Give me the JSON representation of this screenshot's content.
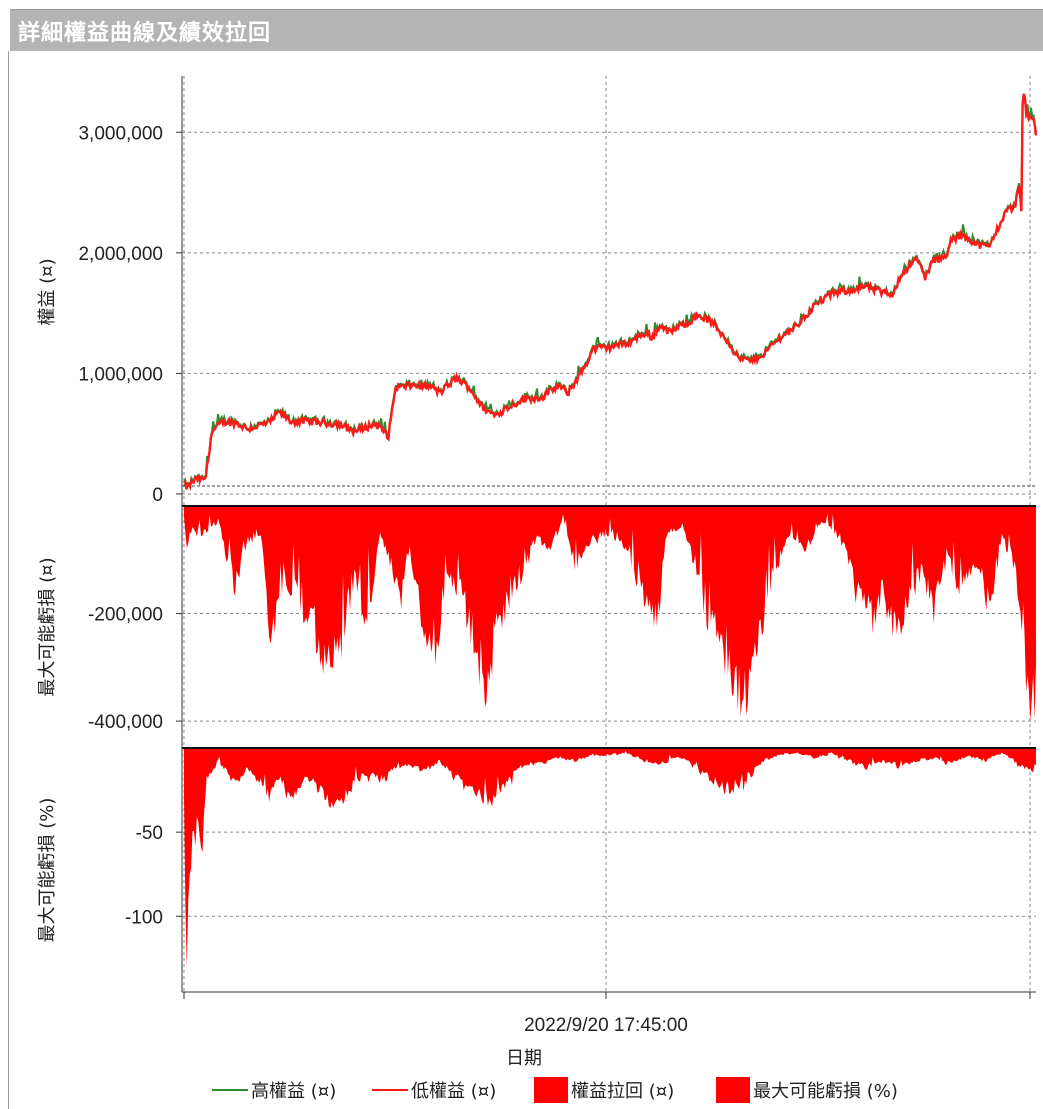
{
  "window": {
    "title": "詳細權益曲線及績效拉回"
  },
  "chart_data": {
    "type": "area",
    "x_tick_labels": [
      "2022/9/20 17:45:00"
    ],
    "xlabel": "日期",
    "panels": [
      {
        "ylabel": "權益 (¤)",
        "y_ticks": [
          0,
          1000000,
          2000000,
          3000000
        ],
        "y_tick_labels": [
          "0",
          "1,000,000",
          "2,000,000",
          "3,000,000"
        ],
        "ylim": [
          -100000,
          3450000
        ]
      },
      {
        "ylabel": "最大可能虧損 (¤)",
        "y_ticks": [
          -200000,
          -400000
        ],
        "y_tick_labels": [
          "-200,000",
          "-400,000"
        ],
        "ylim": [
          -450000,
          0
        ]
      },
      {
        "ylabel": "最大可能虧損 (%)",
        "y_ticks": [
          -50,
          -100
        ],
        "y_tick_labels": [
          "-50",
          "-100"
        ],
        "ylim": [
          -145,
          0
        ]
      }
    ],
    "series": [
      {
        "name": "高權益 (¤)",
        "color": "#2e8b2e",
        "style": "line"
      },
      {
        "name": "低權益 (¤)",
        "color": "#ff1a1a",
        "style": "line"
      },
      {
        "name": "權益拉回 (¤)",
        "color": "#ff0000",
        "style": "area"
      },
      {
        "name": "最大可能虧損 (%)",
        "color": "#ff0000",
        "style": "area"
      }
    ],
    "equity_keypoints": [
      [
        0.0,
        80000
      ],
      [
        0.004,
        50000
      ],
      [
        0.01,
        100000
      ],
      [
        0.016,
        130000
      ],
      [
        0.022,
        110000
      ],
      [
        0.026,
        150000
      ],
      [
        0.032,
        500000
      ],
      [
        0.045,
        600000
      ],
      [
        0.06,
        590000
      ],
      [
        0.075,
        540000
      ],
      [
        0.1,
        590000
      ],
      [
        0.112,
        680000
      ],
      [
        0.125,
        600000
      ],
      [
        0.15,
        600000
      ],
      [
        0.18,
        580000
      ],
      [
        0.2,
        520000
      ],
      [
        0.225,
        580000
      ],
      [
        0.24,
        480000
      ],
      [
        0.248,
        880000
      ],
      [
        0.27,
        900000
      ],
      [
        0.29,
        890000
      ],
      [
        0.3,
        840000
      ],
      [
        0.32,
        960000
      ],
      [
        0.335,
        880000
      ],
      [
        0.35,
        720000
      ],
      [
        0.365,
        650000
      ],
      [
        0.38,
        720000
      ],
      [
        0.4,
        790000
      ],
      [
        0.42,
        800000
      ],
      [
        0.44,
        900000
      ],
      [
        0.45,
        830000
      ],
      [
        0.47,
        1050000
      ],
      [
        0.48,
        1200000
      ],
      [
        0.5,
        1220000
      ],
      [
        0.52,
        1250000
      ],
      [
        0.54,
        1330000
      ],
      [
        0.55,
        1300000
      ],
      [
        0.56,
        1400000
      ],
      [
        0.57,
        1340000
      ],
      [
        0.59,
        1420000
      ],
      [
        0.605,
        1480000
      ],
      [
        0.62,
        1420000
      ],
      [
        0.64,
        1250000
      ],
      [
        0.65,
        1130000
      ],
      [
        0.665,
        1100000
      ],
      [
        0.68,
        1160000
      ],
      [
        0.7,
        1300000
      ],
      [
        0.72,
        1400000
      ],
      [
        0.74,
        1560000
      ],
      [
        0.76,
        1660000
      ],
      [
        0.78,
        1690000
      ],
      [
        0.8,
        1720000
      ],
      [
        0.815,
        1680000
      ],
      [
        0.83,
        1650000
      ],
      [
        0.845,
        1850000
      ],
      [
        0.86,
        1950000
      ],
      [
        0.87,
        1800000
      ],
      [
        0.88,
        1940000
      ],
      [
        0.895,
        1960000
      ],
      [
        0.9,
        2100000
      ],
      [
        0.915,
        2150000
      ],
      [
        0.93,
        2070000
      ],
      [
        0.945,
        2050000
      ],
      [
        0.955,
        2200000
      ],
      [
        0.965,
        2350000
      ],
      [
        0.975,
        2380000
      ],
      [
        0.98,
        2550000
      ],
      [
        0.983,
        2350000
      ],
      [
        0.984,
        3200000
      ],
      [
        0.986,
        3360000
      ],
      [
        0.989,
        3120000
      ],
      [
        0.993,
        3150000
      ],
      [
        0.998,
        3080000
      ],
      [
        1.0,
        2980000
      ]
    ],
    "drawdown_keypoints": [
      [
        0.0,
        -20000
      ],
      [
        0.004,
        -90000
      ],
      [
        0.009,
        -40000
      ],
      [
        0.02,
        -60000
      ],
      [
        0.04,
        -30000
      ],
      [
        0.06,
        -170000
      ],
      [
        0.07,
        -80000
      ],
      [
        0.09,
        -50000
      ],
      [
        0.1,
        -260000
      ],
      [
        0.12,
        -150000
      ],
      [
        0.14,
        -200000
      ],
      [
        0.16,
        -280000
      ],
      [
        0.175,
        -320000
      ],
      [
        0.185,
        -260000
      ],
      [
        0.2,
        -140000
      ],
      [
        0.215,
        -230000
      ],
      [
        0.23,
        -60000
      ],
      [
        0.255,
        -180000
      ],
      [
        0.265,
        -80000
      ],
      [
        0.28,
        -220000
      ],
      [
        0.295,
        -280000
      ],
      [
        0.31,
        -120000
      ],
      [
        0.33,
        -200000
      ],
      [
        0.345,
        -300000
      ],
      [
        0.355,
        -370000
      ],
      [
        0.365,
        -260000
      ],
      [
        0.38,
        -180000
      ],
      [
        0.4,
        -120000
      ],
      [
        0.415,
        -60000
      ],
      [
        0.43,
        -90000
      ],
      [
        0.445,
        -20000
      ],
      [
        0.46,
        -120000
      ],
      [
        0.48,
        -70000
      ],
      [
        0.5,
        -50000
      ],
      [
        0.52,
        -80000
      ],
      [
        0.54,
        -180000
      ],
      [
        0.555,
        -240000
      ],
      [
        0.565,
        -60000
      ],
      [
        0.585,
        -40000
      ],
      [
        0.6,
        -120000
      ],
      [
        0.62,
        -250000
      ],
      [
        0.635,
        -330000
      ],
      [
        0.65,
        -385000
      ],
      [
        0.66,
        -360000
      ],
      [
        0.672,
        -300000
      ],
      [
        0.69,
        -140000
      ],
      [
        0.71,
        -60000
      ],
      [
        0.73,
        -80000
      ],
      [
        0.75,
        -30000
      ],
      [
        0.77,
        -60000
      ],
      [
        0.79,
        -180000
      ],
      [
        0.81,
        -230000
      ],
      [
        0.82,
        -160000
      ],
      [
        0.835,
        -260000
      ],
      [
        0.85,
        -180000
      ],
      [
        0.865,
        -130000
      ],
      [
        0.88,
        -210000
      ],
      [
        0.895,
        -100000
      ],
      [
        0.91,
        -180000
      ],
      [
        0.93,
        -110000
      ],
      [
        0.945,
        -200000
      ],
      [
        0.96,
        -60000
      ],
      [
        0.975,
        -120000
      ],
      [
        0.985,
        -300000
      ],
      [
        0.992,
        -350000
      ],
      [
        0.997,
        -420000
      ],
      [
        1.0,
        -380000
      ]
    ],
    "drawdown_pct_keypoints": [
      [
        0.0,
        -30
      ],
      [
        0.003,
        -140
      ],
      [
        0.006,
        -90
      ],
      [
        0.01,
        -60
      ],
      [
        0.015,
        -45
      ],
      [
        0.022,
        -58
      ],
      [
        0.026,
        -20
      ],
      [
        0.04,
        -8
      ],
      [
        0.06,
        -22
      ],
      [
        0.075,
        -12
      ],
      [
        0.1,
        -28
      ],
      [
        0.115,
        -20
      ],
      [
        0.13,
        -30
      ],
      [
        0.145,
        -18
      ],
      [
        0.165,
        -30
      ],
      [
        0.18,
        -36
      ],
      [
        0.2,
        -20
      ],
      [
        0.22,
        -16
      ],
      [
        0.235,
        -20
      ],
      [
        0.245,
        -12
      ],
      [
        0.265,
        -10
      ],
      [
        0.28,
        -15
      ],
      [
        0.3,
        -8
      ],
      [
        0.32,
        -20
      ],
      [
        0.34,
        -28
      ],
      [
        0.36,
        -33
      ],
      [
        0.38,
        -20
      ],
      [
        0.4,
        -10
      ],
      [
        0.42,
        -10
      ],
      [
        0.44,
        -6
      ],
      [
        0.46,
        -8
      ],
      [
        0.48,
        -5
      ],
      [
        0.5,
        -4
      ],
      [
        0.52,
        -3
      ],
      [
        0.54,
        -8
      ],
      [
        0.56,
        -10
      ],
      [
        0.58,
        -5
      ],
      [
        0.6,
        -12
      ],
      [
        0.625,
        -22
      ],
      [
        0.645,
        -26
      ],
      [
        0.66,
        -20
      ],
      [
        0.68,
        -8
      ],
      [
        0.7,
        -4
      ],
      [
        0.72,
        -3
      ],
      [
        0.74,
        -6
      ],
      [
        0.76,
        -3
      ],
      [
        0.78,
        -8
      ],
      [
        0.8,
        -12
      ],
      [
        0.82,
        -8
      ],
      [
        0.84,
        -12
      ],
      [
        0.86,
        -8
      ],
      [
        0.88,
        -6
      ],
      [
        0.9,
        -10
      ],
      [
        0.92,
        -5
      ],
      [
        0.94,
        -8
      ],
      [
        0.96,
        -3
      ],
      [
        0.98,
        -10
      ],
      [
        0.995,
        -14
      ],
      [
        1.0,
        -11
      ]
    ]
  }
}
